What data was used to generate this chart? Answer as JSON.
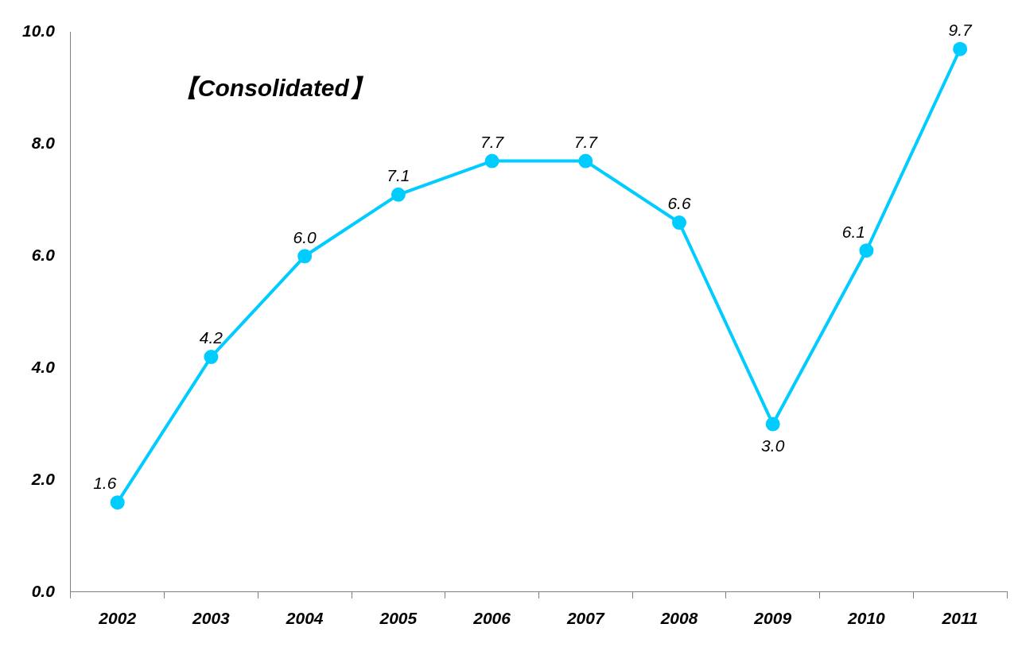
{
  "chart_data": {
    "type": "line",
    "title": "【Consolidated】",
    "categories": [
      "2002",
      "2003",
      "2004",
      "2005",
      "2006",
      "2007",
      "2008",
      "2009",
      "2010",
      "2011"
    ],
    "series": [
      {
        "color": "#00ccff",
        "values": [
          1.6,
          4.2,
          6.0,
          7.1,
          7.7,
          7.7,
          6.6,
          3.0,
          6.1,
          9.7
        ],
        "value_labels": [
          "1.6",
          "4.2",
          "6.0",
          "7.1",
          "7.7",
          "7.7",
          "6.6",
          "3.0",
          "6.1",
          "9.7"
        ]
      }
    ],
    "ylim": [
      0,
      10
    ],
    "yticks": [
      {
        "value": 0,
        "label": "0.0"
      },
      {
        "value": 2,
        "label": "2.0"
      },
      {
        "value": 4,
        "label": "4.0"
      },
      {
        "value": 6,
        "label": "6.0"
      },
      {
        "value": 8,
        "label": "8.0"
      },
      {
        "value": 10,
        "label": "10.0"
      }
    ],
    "grid": false,
    "legend": false,
    "marker": "circle",
    "line_style": "solid"
  }
}
